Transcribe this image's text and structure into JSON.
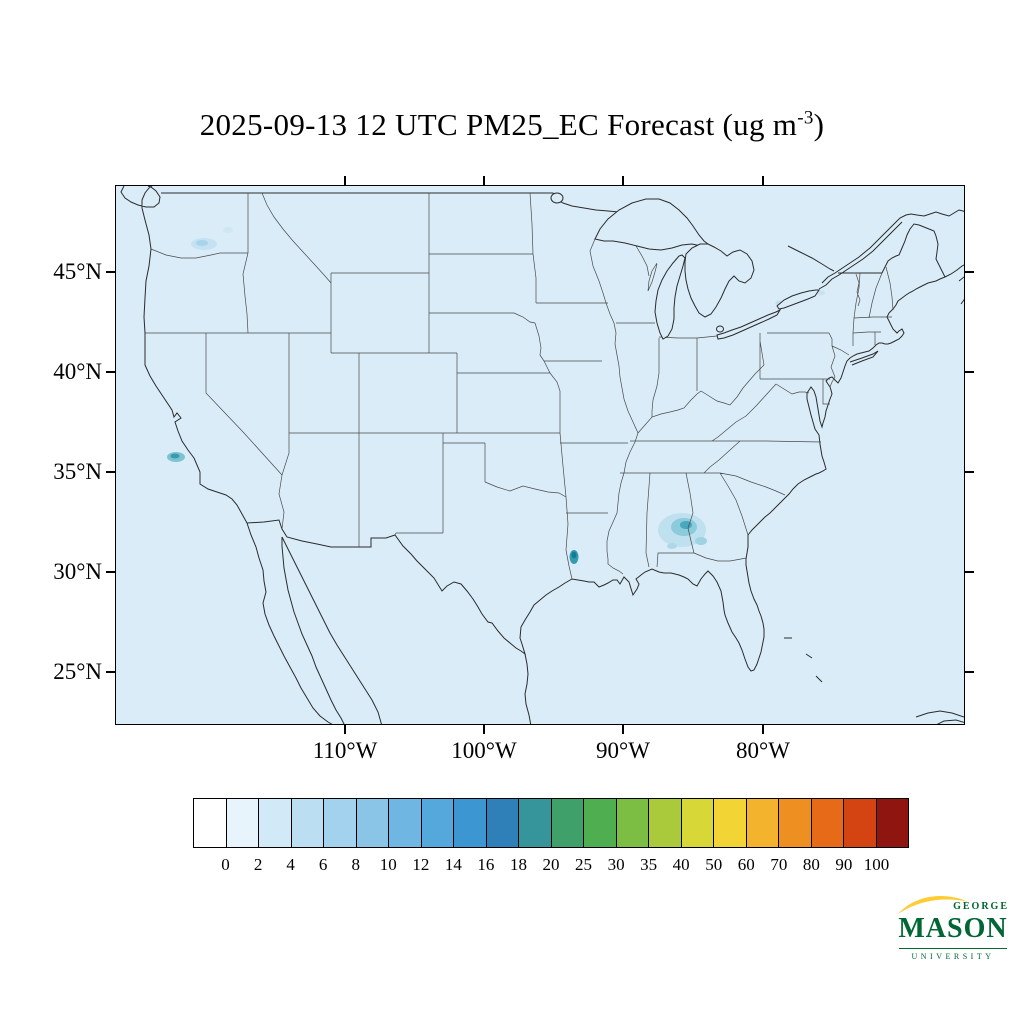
{
  "title": {
    "prefix": "2025-09-13 12 UTC PM25_EC Forecast (ug m",
    "exponent": "-3",
    "suffix": ")"
  },
  "map": {
    "lat_labels": [
      "45°N",
      "40°N",
      "35°N",
      "30°N",
      "25°N"
    ],
    "lon_labels": [
      "110°W",
      "100°W",
      "90°W",
      "80°W"
    ],
    "ocean_land_color": "#d9ecf8",
    "outline_color": "#2b2b2b",
    "state_line_color": "#4a4a4a"
  },
  "colorbar": {
    "labels": [
      "0",
      "2",
      "4",
      "6",
      "8",
      "10",
      "12",
      "14",
      "16",
      "18",
      "20",
      "25",
      "30",
      "35",
      "40",
      "50",
      "60",
      "70",
      "80",
      "90",
      "100"
    ],
    "colors": [
      "#ffffff",
      "#e8f4fb",
      "#d2e9f7",
      "#bcdef2",
      "#a3d2ee",
      "#8ac5e8",
      "#6fb7e2",
      "#54a8db",
      "#3b96d2",
      "#2f80b8",
      "#35959b",
      "#3fa06a",
      "#4fae4f",
      "#7cbd44",
      "#aaca3c",
      "#d7d737",
      "#f2d534",
      "#f3b32c",
      "#ee8f22",
      "#e76a18",
      "#d44413",
      "#8f1511"
    ]
  },
  "logo": {
    "george": "GEORGE",
    "mason": "MASON",
    "university": "UNIVERSITY",
    "green": "#006633",
    "gold": "#FFCC33"
  },
  "chart_data": {
    "type": "heatmap",
    "title": "2025-09-13 12 UTC PM25_EC Forecast (ug m-3)",
    "variable": "PM25_EC",
    "units": "ug m-3",
    "valid_time": "2025-09-13 12 UTC",
    "region": "Continental United States with parts of Canada and Mexico",
    "lat_ticks_deg_n": [
      45,
      40,
      35,
      30,
      25
    ],
    "lon_ticks_deg_w": [
      110,
      100,
      90,
      80
    ],
    "colorbar_levels": [
      0,
      2,
      4,
      6,
      8,
      10,
      12,
      14,
      16,
      18,
      20,
      25,
      30,
      35,
      40,
      50,
      60,
      70,
      80,
      90,
      100
    ],
    "field_summary": "Background field mostly 0-2 ug m-3 across the domain; small elevated plumes of roughly 2-10 ug m-3 over western Washington, northern California, the Texas-Louisiana border, and a diffuse area over Alabama-Georgia."
  }
}
